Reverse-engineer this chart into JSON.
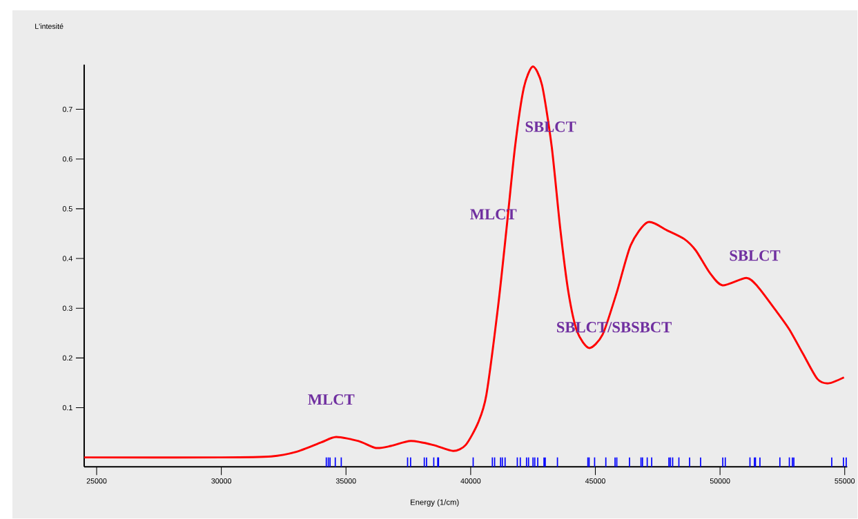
{
  "chart_data": {
    "type": "line",
    "xlabel": "Energy (1/cm)",
    "ylabel": "L'intesité",
    "xlim": [
      24500,
      55100
    ],
    "ylim": [
      -0.019,
      0.79
    ],
    "xticks": [
      25000,
      30000,
      35000,
      40000,
      45000,
      50000,
      55000
    ],
    "yticks": [
      0.1,
      0.2,
      0.3,
      0.4,
      0.5,
      0.6,
      0.7
    ],
    "series": [
      {
        "color": "#ff0000",
        "x": [
          24500,
          30000,
          32000,
          33000,
          34000,
          34600,
          35500,
          36200,
          36800,
          37600,
          38500,
          39300,
          39800,
          40300,
          40630,
          41100,
          41440,
          41780,
          42130,
          42490,
          42860,
          43250,
          43590,
          43920,
          44270,
          44750,
          45290,
          45860,
          46420,
          47100,
          47900,
          48570,
          49030,
          49590,
          50100,
          51060,
          51520,
          52200,
          52770,
          53330,
          53900,
          54350,
          54970
        ],
        "values": [
          0,
          0,
          0.002,
          0.011,
          0.03,
          0.041,
          0.033,
          0.019,
          0.023,
          0.033,
          0.025,
          0.013,
          0.025,
          0.07,
          0.126,
          0.304,
          0.461,
          0.625,
          0.743,
          0.786,
          0.749,
          0.625,
          0.461,
          0.332,
          0.253,
          0.22,
          0.247,
          0.332,
          0.427,
          0.473,
          0.456,
          0.439,
          0.416,
          0.371,
          0.346,
          0.361,
          0.343,
          0.298,
          0.258,
          0.208,
          0.158,
          0.149,
          0.161
        ]
      },
      {
        "type": "bar",
        "color": "#0000ff",
        "base": [
          -0.019,
          -0.019,
          -0.019,
          -0.019,
          -0.019,
          -0.019,
          -0.019,
          -0.019,
          -0.019,
          -0.019,
          -0.019,
          -0.019,
          -0.019,
          -0.019,
          -0.019,
          -0.019,
          -0.019,
          -0.019,
          -0.019,
          -0.019,
          -0.019,
          -0.019,
          -0.019,
          -0.019,
          -0.019,
          -0.019,
          -0.019,
          -0.019,
          -0.019,
          -0.019,
          -0.019,
          -0.019,
          -0.019,
          -0.019,
          -0.019,
          -0.019,
          -0.019,
          -0.019,
          -0.019,
          -0.019,
          -0.019,
          -0.019,
          -0.019,
          -0.019,
          -0.019,
          -0.019,
          -0.019,
          -0.019,
          -0.019,
          -0.019,
          -0.019,
          -0.019,
          -0.019,
          -0.019,
          -0.019,
          -0.019,
          -0.019,
          -0.019
        ],
        "x": [
          34210,
          34290,
          34360,
          34570,
          34810,
          37470,
          37590,
          38140,
          38230,
          38520,
          38680,
          38710,
          40100,
          40870,
          40960,
          41200,
          41270,
          41380,
          41870,
          41990,
          42240,
          42320,
          42500,
          42570,
          42690,
          42940,
          42990,
          43480,
          44700,
          44750,
          44970,
          45420,
          45790,
          45860,
          46370,
          46830,
          46890,
          47080,
          47260,
          47950,
          48010,
          48100,
          48350,
          48780,
          49220,
          50110,
          50210,
          51200,
          51380,
          51420,
          51600,
          52400,
          52780,
          52900,
          52960,
          54480,
          54950,
          55060
        ],
        "values": [
          0.019,
          0.019,
          0.019,
          0.019,
          0.019,
          0.019,
          0.019,
          0.019,
          0.019,
          0.019,
          0.019,
          0.019,
          0.019,
          0.019,
          0.019,
          0.019,
          0.019,
          0.019,
          0.019,
          0.019,
          0.019,
          0.019,
          0.019,
          0.019,
          0.019,
          0.019,
          0.019,
          0.019,
          0.019,
          0.019,
          0.019,
          0.019,
          0.019,
          0.019,
          0.019,
          0.019,
          0.019,
          0.019,
          0.019,
          0.019,
          0.019,
          0.019,
          0.019,
          0.019,
          0.019,
          0.019,
          0.019,
          0.019,
          0.019,
          0.019,
          0.019,
          0.019,
          0.019,
          0.019,
          0.019,
          0.019,
          0.019,
          0.019
        ]
      }
    ],
    "annotations": [
      "MLCT",
      "MLCT",
      "SBLCT",
      "SBLCT/SBSBCT",
      "SBLCT"
    ]
  }
}
